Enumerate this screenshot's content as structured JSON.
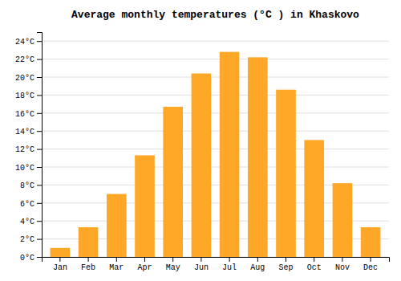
{
  "chart_data": {
    "type": "bar",
    "title": "Average monthly temperatures (°C ) in Khaskovo",
    "categories": [
      "Jan",
      "Feb",
      "Mar",
      "Apr",
      "May",
      "Jun",
      "Jul",
      "Aug",
      "Sep",
      "Oct",
      "Nov",
      "Dec"
    ],
    "values": [
      1.0,
      3.3,
      7.0,
      11.3,
      16.7,
      20.4,
      22.8,
      22.2,
      18.6,
      13.0,
      8.2,
      3.3
    ],
    "color": "#FFA726",
    "ylim": [
      0,
      25
    ],
    "yticks": [
      {
        "value": 0,
        "label": "0°C"
      },
      {
        "value": 2,
        "label": "2°C"
      },
      {
        "value": 4,
        "label": "4°C"
      },
      {
        "value": 6,
        "label": "6°C"
      },
      {
        "value": 8,
        "label": "8°C"
      },
      {
        "value": 10,
        "label": "10°C"
      },
      {
        "value": 12,
        "label": "12°C"
      },
      {
        "value": 14,
        "label": "14°C"
      },
      {
        "value": 16,
        "label": "16°C"
      },
      {
        "value": 18,
        "label": "18°C"
      },
      {
        "value": 20,
        "label": "20°C"
      },
      {
        "value": 22,
        "label": "22°C"
      },
      {
        "value": 24,
        "label": "24°C"
      }
    ],
    "grid": true
  }
}
